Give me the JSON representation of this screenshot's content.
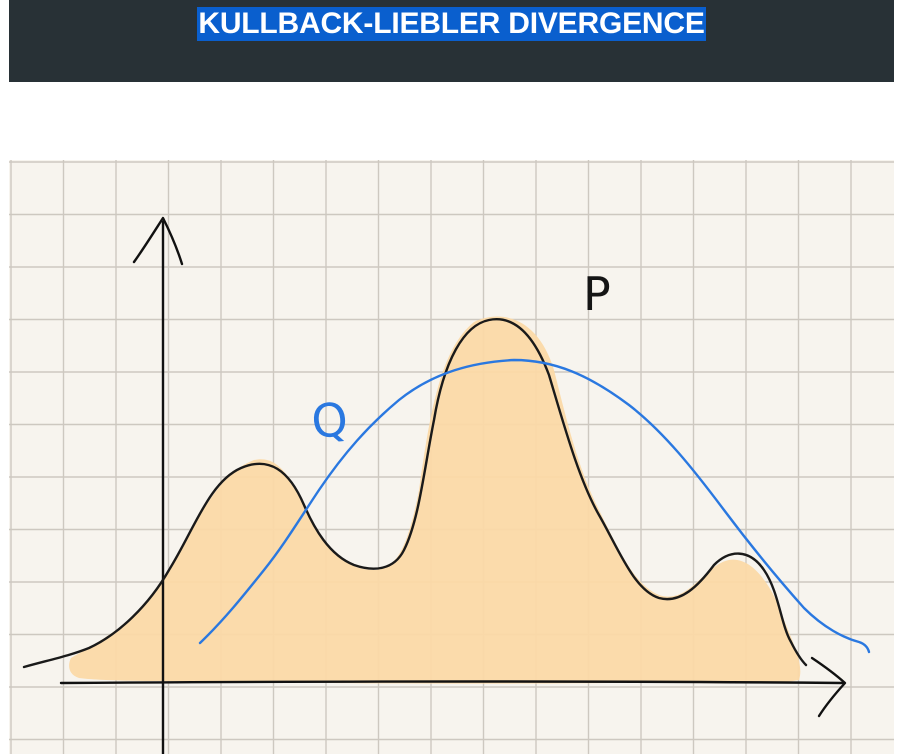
{
  "header": {
    "title": "KULLBACK-LIEBLER DIVERGENCE",
    "background_color": "#283136",
    "title_highlight_color": "#0a5fce"
  },
  "figure": {
    "paper_color": "#f7f4ee",
    "grid_color": "#cdc8c0",
    "axis_color": "#111111",
    "labels": {
      "p": "P",
      "q": "Q"
    },
    "curves": {
      "p": {
        "description_label": "P",
        "fill_color": "#fbd9a7",
        "stroke_color": "#1a1a1a"
      },
      "q": {
        "description_label": "Q",
        "stroke_color": "#2a78e0"
      }
    }
  }
}
